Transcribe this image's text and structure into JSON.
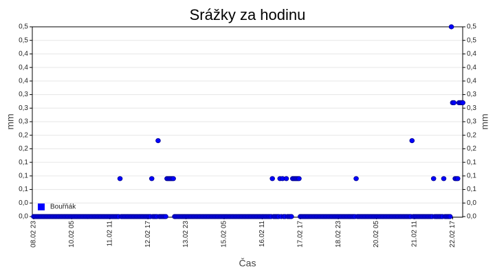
{
  "chart_data": {
    "type": "scatter",
    "title": "Srážky za hodinu",
    "x_label": "Čas",
    "y_label": "mm",
    "y2_label": "mm",
    "color": "#0000ff",
    "grid": true,
    "legend": "bottom-left",
    "series": [
      {
        "name": "Bouřňák",
        "color": "#0000ff",
        "values": [
          0,
          0,
          0,
          0,
          0,
          0,
          0,
          0,
          0,
          0,
          0,
          0,
          0,
          0,
          0,
          0,
          0,
          0,
          0,
          0,
          0,
          0,
          0,
          0,
          0,
          0,
          0,
          0,
          0,
          0,
          0,
          0,
          0,
          0,
          0,
          0,
          0,
          0,
          0,
          0,
          0,
          0,
          0,
          0,
          0,
          0,
          0,
          0,
          0,
          0,
          0,
          0,
          0,
          0,
          0,
          0,
          0,
          0,
          0,
          0,
          0,
          0,
          0,
          0,
          0,
          0,
          0,
          0,
          0.1,
          0,
          0,
          0,
          0,
          0,
          0,
          0,
          0,
          0,
          0,
          0,
          0,
          0,
          0,
          0,
          0,
          0,
          0,
          0,
          0,
          0,
          0,
          0,
          0,
          0.1,
          0,
          0,
          0,
          0,
          0.2,
          0,
          0,
          0,
          0,
          0,
          0,
          0.1,
          0.1,
          0.1,
          0.1,
          0.1,
          0.1,
          0,
          0,
          0,
          0,
          0,
          0,
          0,
          0,
          0,
          0,
          0,
          0,
          0,
          0,
          0,
          0,
          0,
          0,
          0,
          0,
          0,
          0,
          0,
          0,
          0,
          0,
          0,
          0,
          0,
          0,
          0,
          0,
          0,
          0,
          0,
          0,
          0,
          0,
          0,
          0,
          0,
          0,
          0,
          0,
          0,
          0,
          0,
          0,
          0,
          0,
          0,
          0,
          0,
          0,
          0,
          0,
          0,
          0,
          0,
          0,
          0,
          0,
          0,
          0,
          0,
          0,
          0,
          0,
          0,
          0,
          0,
          0,
          0,
          0,
          0,
          0,
          0,
          0.1,
          0,
          0,
          0,
          0,
          0,
          0.1,
          0,
          0.1,
          0,
          0,
          0.1,
          0,
          0,
          0,
          0,
          0.1,
          0.1,
          0.1,
          0.1,
          0.1,
          0.1,
          0,
          0,
          0,
          0,
          0,
          0,
          0,
          0,
          0,
          0,
          0,
          0,
          0,
          0,
          0,
          0,
          0,
          0,
          0,
          0,
          0,
          0,
          0,
          0,
          0,
          0,
          0,
          0,
          0,
          0,
          0,
          0,
          0,
          0,
          0,
          0,
          0,
          0,
          0,
          0,
          0,
          0,
          0,
          0,
          0.1,
          0,
          0,
          0,
          0,
          0,
          0,
          0,
          0,
          0,
          0,
          0,
          0,
          0,
          0,
          0,
          0,
          0,
          0,
          0,
          0,
          0,
          0,
          0,
          0,
          0,
          0,
          0,
          0,
          0,
          0,
          0,
          0,
          0,
          0,
          0,
          0,
          0,
          0,
          0,
          0,
          0,
          0,
          0,
          0.2,
          0,
          0,
          0,
          0,
          0,
          0,
          0,
          0,
          0,
          0,
          0,
          0,
          0,
          0,
          0,
          0,
          0.1,
          0,
          0,
          0,
          0,
          0,
          0,
          0,
          0.1,
          0,
          0,
          0,
          0,
          0,
          0.5,
          0.3,
          0.3,
          0.1,
          0.1,
          0.1,
          0.3,
          0.3,
          0.3,
          0.3
        ]
      }
    ],
    "categories": [
      "08.02 23",
      null,
      null,
      null,
      null,
      null,
      null,
      null,
      null,
      null,
      null,
      null,
      null,
      null,
      null,
      null,
      null,
      null,
      null,
      null,
      null,
      null,
      null,
      null,
      null,
      null,
      null,
      null,
      null,
      null,
      "10.02 05",
      null,
      null,
      null,
      null,
      null,
      null,
      null,
      null,
      null,
      null,
      null,
      null,
      null,
      null,
      null,
      null,
      null,
      null,
      null,
      null,
      null,
      null,
      null,
      null,
      null,
      null,
      null,
      null,
      null,
      "11.02 11",
      null,
      null,
      null,
      null,
      null,
      null,
      null,
      null,
      null,
      null,
      null,
      null,
      null,
      null,
      null,
      null,
      null,
      null,
      null,
      null,
      null,
      null,
      null,
      null,
      null,
      null,
      null,
      null,
      null,
      "12.02 17",
      null,
      null,
      null,
      null,
      null,
      null,
      null,
      null,
      null,
      null,
      null,
      null,
      null,
      null,
      null,
      null,
      null,
      null,
      null,
      null,
      null,
      null,
      null,
      null,
      null,
      null,
      null,
      null,
      null,
      "13.02 23",
      null,
      null,
      null,
      null,
      null,
      null,
      null,
      null,
      null,
      null,
      null,
      null,
      null,
      null,
      null,
      null,
      null,
      null,
      null,
      null,
      null,
      null,
      null,
      null,
      null,
      null,
      null,
      null,
      null,
      "15.02 05",
      null,
      null,
      null,
      null,
      null,
      null,
      null,
      null,
      null,
      null,
      null,
      null,
      null,
      null,
      null,
      null,
      null,
      null,
      null,
      null,
      null,
      null,
      null,
      null,
      null,
      null,
      null,
      null,
      null,
      "16.02 11",
      null,
      null,
      null,
      null,
      null,
      null,
      null,
      null,
      null,
      null,
      null,
      null,
      null,
      null,
      null,
      null,
      null,
      null,
      null,
      null,
      null,
      null,
      null,
      null,
      null,
      null,
      null,
      null,
      null,
      "17.02 17",
      null,
      null,
      null,
      null,
      null,
      null,
      null,
      null,
      null,
      null,
      null,
      null,
      null,
      null,
      null,
      null,
      null,
      null,
      null,
      null,
      null,
      null,
      null,
      null,
      null,
      null,
      null,
      null,
      null,
      "18.02 23",
      null,
      null,
      null,
      null,
      null,
      null,
      null,
      null,
      null,
      null,
      null,
      null,
      null,
      null,
      null,
      null,
      null,
      null,
      null,
      null,
      null,
      null,
      null,
      null,
      null,
      null,
      null,
      null,
      null,
      "20.02 05",
      null,
      null,
      null,
      null,
      null,
      null,
      null,
      null,
      null,
      null,
      null,
      null,
      null,
      null,
      null,
      null,
      null,
      null,
      null,
      null,
      null,
      null,
      null,
      null,
      null,
      null,
      null,
      null,
      null,
      "21.02 11",
      null,
      null,
      null,
      null,
      null,
      null,
      null,
      null,
      null,
      null,
      null,
      null,
      null,
      null,
      null,
      null,
      null,
      null,
      null,
      null,
      null,
      null,
      null,
      null,
      null,
      null,
      null,
      null,
      null,
      "22.02 17",
      null,
      null,
      null,
      null,
      null,
      null,
      null,
      null
    ],
    "ylim": [
      0,
      0.5
    ],
    "yticks": [
      {
        "value": 0,
        "label": "0,0"
      },
      {
        "value": 0.0357,
        "label": "0,0"
      },
      {
        "value": 0.0714,
        "label": "0,1"
      },
      {
        "value": 0.1071,
        "label": "0,1"
      },
      {
        "value": 0.1429,
        "label": "0,1"
      },
      {
        "value": 0.1786,
        "label": "0,2"
      },
      {
        "value": 0.2143,
        "label": "0,2"
      },
      {
        "value": 0.25,
        "label": "0,3"
      },
      {
        "value": 0.2857,
        "label": "0,3"
      },
      {
        "value": 0.3214,
        "label": "0,3"
      },
      {
        "value": 0.3571,
        "label": "0,4"
      },
      {
        "value": 0.3929,
        "label": "0,4"
      },
      {
        "value": 0.4286,
        "label": "0,4"
      },
      {
        "value": 0.4643,
        "label": "0,5"
      },
      {
        "value": 0.5,
        "label": "0,5"
      }
    ]
  }
}
